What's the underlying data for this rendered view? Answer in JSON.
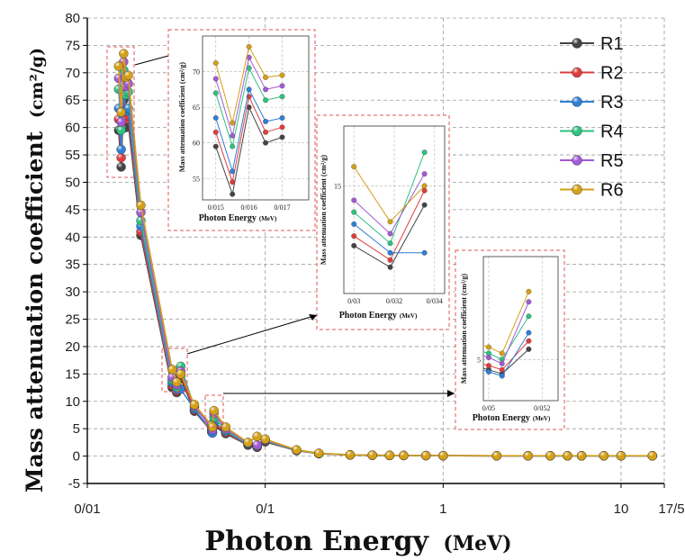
{
  "chart_data": {
    "type": "line",
    "xlabel": "Photon Energy",
    "xlabel_unit": "(MeV)",
    "ylabel": "Mass attenuation coefficient",
    "ylabel_unit": "(cm²/g)",
    "x_scale": "log",
    "xlim": [
      0.01,
      17.5
    ],
    "ylim": [
      -5,
      80
    ],
    "x_ticks": [
      "0/01",
      "0/1",
      "1",
      "10",
      "17/5"
    ],
    "x_tick_values": [
      0.01,
      0.1,
      1,
      10,
      17.5
    ],
    "y_ticks": [
      -5,
      0,
      5,
      10,
      15,
      20,
      25,
      30,
      35,
      40,
      45,
      50,
      55,
      60,
      65,
      70,
      75,
      80
    ],
    "grid": true,
    "legend_position": "top-right",
    "x": [
      0.015,
      0.0155,
      0.016,
      0.0165,
      0.017,
      0.02,
      0.03,
      0.0318,
      0.0335,
      0.04,
      0.05,
      0.0505,
      0.0515,
      0.06,
      0.08,
      0.09,
      0.1,
      0.15,
      0.2,
      0.3,
      0.4,
      0.5,
      0.6,
      0.8,
      1,
      2,
      3,
      4,
      5,
      6,
      8,
      10,
      15
    ],
    "series": [
      {
        "name": "R1",
        "color": "#444444",
        "values": [
          59.5,
          52.8,
          65.0,
          60.0,
          60.8,
          40.3,
          12.5,
          11.6,
          14.2,
          8.2,
          4.5,
          4.3,
          5.5,
          4.1,
          2.0,
          1.6,
          2.6,
          1.0,
          0.45,
          0.2,
          0.15,
          0.12,
          0.11,
          0.09,
          0.07,
          0.05,
          0.05,
          0.05,
          0.05,
          0.05,
          0.05,
          0.05,
          0.05
        ]
      },
      {
        "name": "R2",
        "color": "#e03c3c",
        "values": [
          61.5,
          54.5,
          66.5,
          61.5,
          62.2,
          41.0,
          12.9,
          11.9,
          14.8,
          8.4,
          4.7,
          4.5,
          5.9,
          4.3,
          2.1,
          1.7,
          2.7,
          1.02,
          0.46,
          0.2,
          0.15,
          0.12,
          0.11,
          0.09,
          0.07,
          0.05,
          0.05,
          0.05,
          0.05,
          0.05,
          0.05,
          0.05,
          0.05
        ]
      },
      {
        "name": "R3",
        "color": "#2f7fd6",
        "values": [
          63.5,
          56.0,
          67.5,
          63.0,
          63.5,
          42.0,
          13.4,
          12.2,
          12.2,
          8.6,
          4.4,
          4.2,
          6.3,
          4.5,
          2.2,
          1.8,
          2.8,
          1.05,
          0.47,
          0.21,
          0.15,
          0.12,
          0.11,
          0.09,
          0.07,
          0.05,
          0.05,
          0.05,
          0.05,
          0.05,
          0.05,
          0.05,
          0.05
        ]
      },
      {
        "name": "R4",
        "color": "#2ec27e",
        "values": [
          67.0,
          59.5,
          70.5,
          66.0,
          66.5,
          43.0,
          13.9,
          12.6,
          16.4,
          8.9,
          5.3,
          5.0,
          7.1,
          4.7,
          2.3,
          1.9,
          2.9,
          1.07,
          0.48,
          0.21,
          0.16,
          0.12,
          0.11,
          0.09,
          0.07,
          0.05,
          0.05,
          0.05,
          0.05,
          0.05,
          0.05,
          0.05,
          0.05
        ]
      },
      {
        "name": "R5",
        "color": "#a25ad6",
        "values": [
          69.0,
          61.0,
          72.0,
          67.5,
          68.0,
          44.5,
          14.4,
          13.0,
          15.5,
          9.1,
          5.1,
          4.8,
          7.8,
          4.9,
          2.4,
          2.0,
          3.0,
          1.1,
          0.5,
          0.22,
          0.16,
          0.13,
          0.11,
          0.09,
          0.07,
          0.05,
          0.05,
          0.05,
          0.05,
          0.05,
          0.05,
          0.05,
          0.05
        ]
      },
      {
        "name": "R6",
        "color": "#d4a017",
        "values": [
          71.2,
          62.8,
          73.5,
          69.2,
          69.5,
          45.8,
          15.8,
          13.5,
          15.0,
          9.4,
          5.6,
          5.3,
          8.3,
          5.3,
          2.5,
          3.6,
          3.1,
          1.15,
          0.52,
          0.23,
          0.16,
          0.13,
          0.12,
          0.1,
          0.08,
          0.06,
          0.06,
          0.06,
          0.06,
          0.06,
          0.06,
          0.06,
          0.06
        ]
      }
    ],
    "insets": [
      {
        "x_ticks": [
          "0/015",
          "0/016",
          "0/017"
        ],
        "y_ticks": [
          "55",
          "60",
          "65",
          "70"
        ],
        "xlabel": "Photon Energy",
        "xlabel_unit": "(MeV)",
        "ylabel": "Mass attenuation coefficient (cm²/g)"
      },
      {
        "x_ticks": [
          "0/03",
          "0/032",
          "0/034"
        ],
        "y_ticks": [
          "15"
        ],
        "xlabel": "Photon Energy",
        "xlabel_unit": "(MeV)",
        "ylabel": "Mass attenuation coefficient (cm²/g)"
      },
      {
        "x_ticks": [
          "0/05",
          "0/052"
        ],
        "y_ticks": [
          "5"
        ],
        "xlabel": "Photon Energy",
        "xlabel_unit": "(MeV)",
        "ylabel": "Mass attenuation coefficient (cm²/g)"
      }
    ]
  }
}
